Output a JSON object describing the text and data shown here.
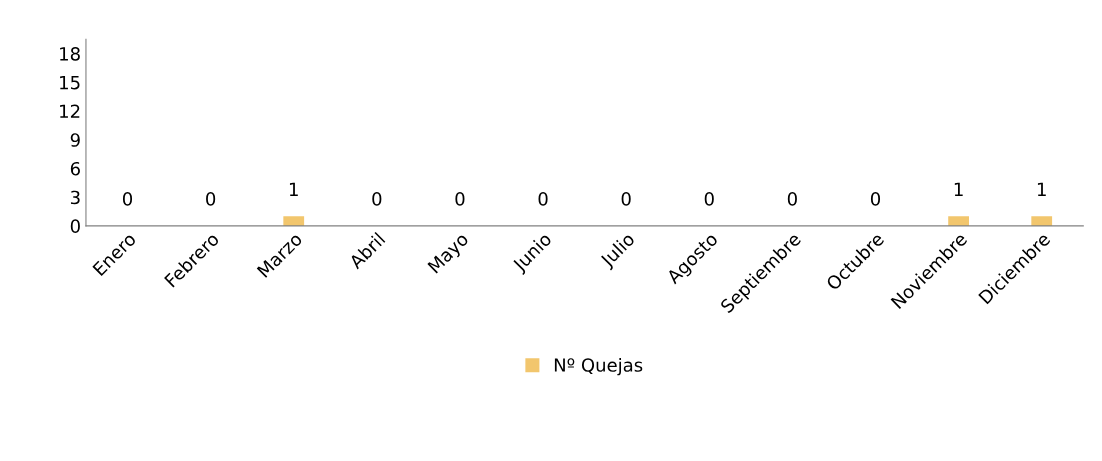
{
  "chart_data": {
    "type": "bar",
    "categories": [
      "Enero",
      "Febrero",
      "Marzo",
      "Abril",
      "Mayo",
      "Junio",
      "Julio",
      "Agosto",
      "Septiembre",
      "Octubre",
      "Noviembre",
      "Diciembre"
    ],
    "series": [
      {
        "name": "Nº Quejas",
        "color": "#f2c66d",
        "values": [
          0,
          0,
          1,
          0,
          0,
          0,
          0,
          0,
          0,
          0,
          1,
          1
        ]
      }
    ],
    "ylim": [
      0,
      19.5
    ],
    "yticks": [
      0,
      3,
      6,
      9,
      12,
      15,
      18
    ],
    "data_labels": true,
    "grid": false,
    "legend": "bottom"
  }
}
